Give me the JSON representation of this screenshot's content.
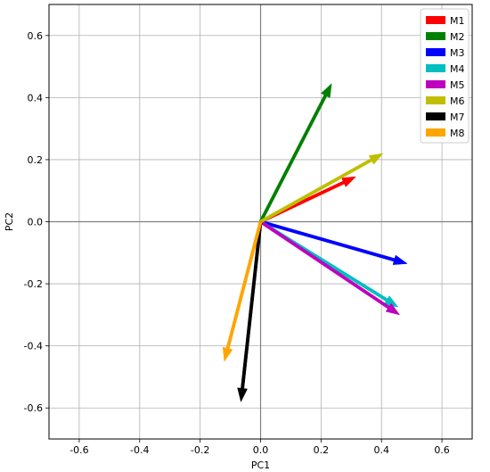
{
  "chart_data": {
    "type": "vector",
    "xlabel": "PC1",
    "ylabel": "PC2",
    "xlim": [
      -0.7,
      0.7
    ],
    "ylim": [
      -0.7,
      0.7
    ],
    "grid": true,
    "legend_position": "top-right",
    "xticks": [
      "-0.6",
      "-0.4",
      "-0.2",
      "0.0",
      "0.2",
      "0.4",
      "0.6"
    ],
    "yticks": [
      "-0.6",
      "-0.4",
      "-0.2",
      "0.0",
      "0.2",
      "0.4",
      "0.6"
    ],
    "series": [
      {
        "name": "M1",
        "x": 0.315,
        "y": 0.145,
        "color": "#ff0000"
      },
      {
        "name": "M2",
        "x": 0.235,
        "y": 0.445,
        "color": "#008000"
      },
      {
        "name": "M3",
        "x": 0.485,
        "y": -0.135,
        "color": "#0000ff"
      },
      {
        "name": "M4",
        "x": 0.455,
        "y": -0.275,
        "color": "#00bfbf"
      },
      {
        "name": "M5",
        "x": 0.46,
        "y": -0.3,
        "color": "#bf00bf"
      },
      {
        "name": "M6",
        "x": 0.405,
        "y": 0.22,
        "color": "#bfbf00"
      },
      {
        "name": "M7",
        "x": -0.065,
        "y": -0.58,
        "color": "#000000"
      },
      {
        "name": "M8",
        "x": -0.12,
        "y": -0.45,
        "color": "#ffa500"
      }
    ]
  }
}
